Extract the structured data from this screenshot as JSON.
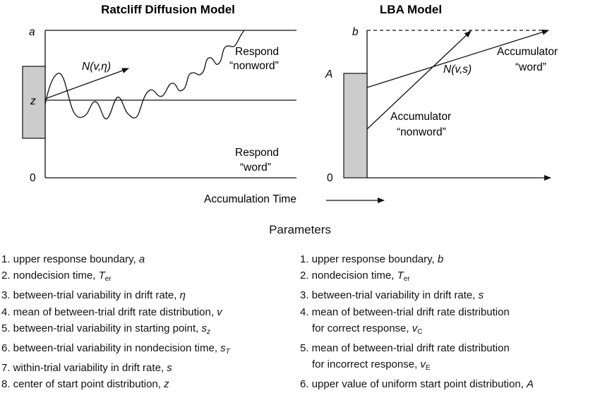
{
  "diffusion": {
    "title": "Ratcliff Diffusion Model",
    "label_a": "a",
    "label_z": "z",
    "label_zero": "0",
    "drift_label": "N(v,η)",
    "respond_nonword": [
      "Respond",
      "“nonword”"
    ],
    "respond_word": [
      "Respond",
      "“word”"
    ]
  },
  "lba": {
    "title": "LBA Model",
    "label_b": "b",
    "label_A": "A",
    "label_zero": "0",
    "drift_label": "N(v,s)",
    "accumulator_word": [
      "Accumulator",
      "“word”"
    ],
    "accumulator_nonword": [
      "Accumulator",
      "“nonword”"
    ]
  },
  "x_axis_label": "Accumulation Time",
  "parameters_heading": "Parameters",
  "diffusion_parameters": [
    {
      "text": "1. upper response boundary, ",
      "symbol": "a",
      "sub": ""
    },
    {
      "text": "2. nondecision time, ",
      "symbol": "T",
      "sub": "er"
    },
    {
      "text": "3. between-trial variability in drift rate, ",
      "symbol": "η",
      "sub": ""
    },
    {
      "text": "4. mean of between-trial drift rate distribution, ",
      "symbol": "v",
      "sub": ""
    },
    {
      "text": "5. between-trial variability in starting point, ",
      "symbol": "s",
      "sub": "z"
    },
    {
      "text": "6. between-trial variability in nondecision time, ",
      "symbol": "s",
      "sub": "T"
    },
    {
      "text": "7. within-trial variability in drift rate, ",
      "symbol": "s",
      "sub": ""
    },
    {
      "text": "8. center of start point distribution, ",
      "symbol": "z",
      "sub": ""
    }
  ],
  "lba_parameters": [
    {
      "line1": "1. upper response boundary, ",
      "symbol": "b",
      "sub": ""
    },
    {
      "line1": "2. nondecision time, ",
      "symbol": "T",
      "sub": "er"
    },
    {
      "line1": "3. between-trial variability in drift rate, ",
      "symbol": "s",
      "sub": ""
    },
    {
      "line1": "4. mean of between-trial drift rate distribution",
      "line2": "for correct response, ",
      "symbol": "v",
      "sub": "C"
    },
    {
      "line1": "5. mean of between-trial drift rate distribution",
      "line2": "for incorrect response, ",
      "symbol": "v",
      "sub": "E"
    },
    {
      "line1": "6. upper value of uniform start point distribution, ",
      "symbol": "A",
      "sub": ""
    }
  ]
}
